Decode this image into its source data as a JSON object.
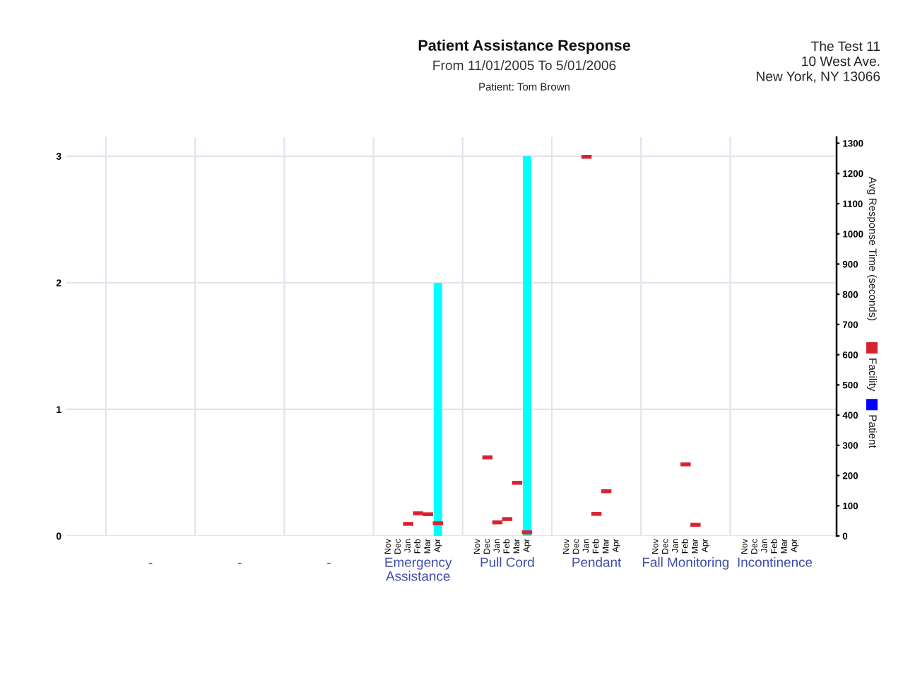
{
  "chart_data": {
    "type": "bar",
    "title": "Patient Assistance Response",
    "subtitle": "From 11/01/2005 To 5/01/2006",
    "annotations": [
      "-",
      "-",
      "-",
      "Emergency Assistance",
      "Pull Cord",
      "Pendant",
      "Fall Monitoring",
      "Incontinence",
      "Patient: Tom Brown",
      "The Test 11\n10 West Ave.\nNew York, NY 13066"
    ],
    "categories": [
      null,
      null,
      null,
      null,
      null,
      null,
      null,
      null,
      null,
      null,
      null,
      null,
      null,
      null,
      null,
      null,
      null,
      null,
      null,
      null,
      null,
      null,
      null,
      null,
      null,
      null,
      null,
      null,
      "Nov",
      "Dec",
      "Jan",
      "Feb",
      "Mar",
      "Apr",
      null,
      null,
      null,
      "Nov",
      "Dec",
      "Jan",
      "Feb",
      "Mar",
      "Apr",
      null,
      null,
      null,
      "Nov",
      "Dec",
      "Jan",
      "Feb",
      "Mar",
      "Apr",
      null,
      null,
      null,
      "Nov",
      "Dec",
      "Jan",
      "Feb",
      "Mar",
      "Apr",
      null,
      null,
      null,
      "Nov",
      "Dec",
      "Jan",
      "Feb",
      "Mar",
      "Apr",
      null,
      null
    ],
    "series": [
      {
        "color": "#00ffff",
        "values": [
          null,
          null,
          null,
          null,
          null,
          null,
          null,
          null,
          null,
          null,
          null,
          null,
          null,
          null,
          null,
          null,
          null,
          null,
          null,
          null,
          null,
          null,
          null,
          null,
          null,
          null,
          null,
          null,
          null,
          null,
          null,
          null,
          null,
          2,
          null,
          null,
          null,
          null,
          null,
          null,
          null,
          null,
          3,
          null,
          null,
          null,
          null,
          null,
          null,
          null,
          null,
          null,
          null,
          null,
          null,
          null,
          null,
          null,
          null,
          null,
          null,
          null,
          null,
          null,
          null,
          null,
          null,
          null,
          null,
          null,
          null,
          null
        ]
      },
      {
        "name": "Facility",
        "type": "scatter",
        "axis": "y2",
        "color": "#d8232f",
        "values": [
          null,
          null,
          null,
          null,
          null,
          null,
          null,
          null,
          null,
          null,
          null,
          null,
          null,
          null,
          null,
          null,
          null,
          null,
          null,
          null,
          null,
          null,
          null,
          null,
          null,
          null,
          null,
          null,
          null,
          null,
          40,
          75,
          72,
          42,
          null,
          null,
          null,
          null,
          260,
          45,
          56,
          176,
          12,
          null,
          null,
          null,
          null,
          null,
          1255,
          73,
          148,
          null,
          null,
          null,
          null,
          null,
          null,
          null,
          237,
          37,
          null,
          null,
          null,
          null,
          null,
          null,
          null,
          null,
          null,
          null,
          null,
          null
        ]
      },
      {
        "name": "Patient",
        "type": "scatter",
        "axis": "y2",
        "color": "#0000ff",
        "values": [
          null,
          null,
          null,
          null,
          null,
          null,
          null,
          null,
          null,
          null,
          null,
          null,
          null,
          null,
          null,
          null,
          null,
          null,
          null,
          null,
          null,
          null,
          null,
          null,
          null,
          null,
          null,
          null,
          null,
          null,
          null,
          null,
          null,
          null,
          null,
          null,
          null,
          null,
          null,
          null,
          null,
          null,
          null,
          null,
          null,
          null,
          null,
          null,
          null,
          null,
          null,
          null,
          null,
          null,
          null,
          null,
          null,
          null,
          null,
          null,
          null,
          null,
          null,
          null,
          null,
          null,
          null,
          null,
          null,
          null,
          null,
          null
        ]
      }
    ],
    "ylim": [
      0,
      3.15
    ],
    "yticks": [
      0,
      1,
      2,
      3
    ],
    "y2lim": [
      0,
      1320
    ],
    "y2ticks": [
      0,
      100,
      200,
      300,
      400,
      500,
      600,
      700,
      800,
      900,
      1000,
      1100,
      1200,
      1300
    ],
    "y2label": "Avg Response Time (seconds)",
    "grid": true,
    "legend": "right"
  }
}
